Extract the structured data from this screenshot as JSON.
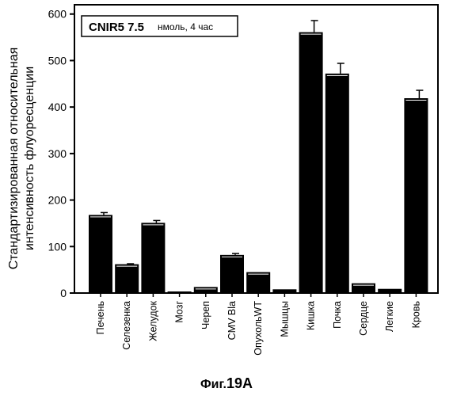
{
  "caption": {
    "prefix": "Фиг.",
    "number": "19A"
  },
  "chart_data": {
    "type": "bar",
    "title": "",
    "legend": {
      "main": "CNIR5 7.5",
      "sub": "нмоль, 4 час",
      "placement": "top-left"
    },
    "ylabel_lines": [
      "Стандартизированная относительная",
      "интенсивность флуоресценции"
    ],
    "xlabel": "",
    "ylim": [
      0,
      620
    ],
    "yticks": [
      0,
      100,
      200,
      300,
      400,
      500,
      600
    ],
    "grid": false,
    "categories": [
      "Печень",
      "Селезенка",
      "Желудок",
      "Мозг",
      "Череп",
      "CMV Bla",
      "ОпухольWT",
      "Мышцы",
      "Кишка",
      "Почка",
      "Сердце",
      "Легкие",
      "Кровь"
    ],
    "values": [
      168,
      62,
      151,
      3,
      13,
      82,
      45,
      8,
      561,
      472,
      21,
      9,
      419
    ],
    "errors": [
      5,
      1,
      5,
      0,
      0,
      3,
      0,
      0,
      25,
      22,
      0,
      0,
      17
    ],
    "bar_color": "#000000"
  }
}
